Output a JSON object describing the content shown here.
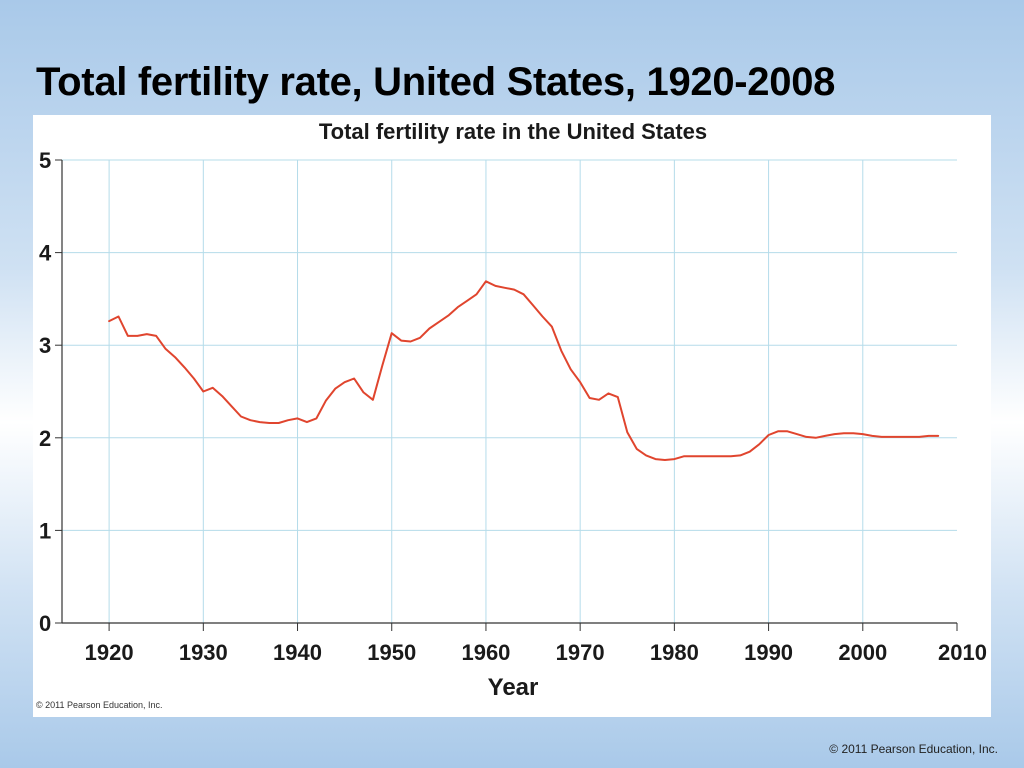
{
  "slide": {
    "title": "Total fertility rate, United States, 1920-2008",
    "footer": "© 2011 Pearson Education, Inc."
  },
  "figure": {
    "credit": "© 2011 Pearson Education, Inc."
  },
  "colors": {
    "line": "#e0452e",
    "grid": "#b5dcea",
    "axis": "#333333"
  },
  "chart_data": {
    "type": "line",
    "title": "Total fertility rate in the United States",
    "xlabel": "Year",
    "ylabel": "",
    "xlim": [
      1915,
      2010
    ],
    "ylim": [
      0,
      5
    ],
    "x_ticks": [
      1920,
      1930,
      1940,
      1950,
      1960,
      1970,
      1980,
      1990,
      2000,
      2010
    ],
    "y_ticks": [
      0,
      1,
      2,
      3,
      4,
      5
    ],
    "grid": true,
    "series": [
      {
        "x": [
          1920,
          1921,
          1922,
          1923,
          1924,
          1925,
          1926,
          1927,
          1928,
          1929,
          1930,
          1931,
          1932,
          1933,
          1934,
          1935,
          1936,
          1937,
          1938,
          1939,
          1940,
          1941,
          1942,
          1943,
          1944,
          1945,
          1946,
          1947,
          1948,
          1949,
          1950,
          1951,
          1952,
          1953,
          1954,
          1955,
          1956,
          1957,
          1958,
          1959,
          1960,
          1961,
          1962,
          1963,
          1964,
          1965,
          1966,
          1967,
          1968,
          1969,
          1970,
          1971,
          1972,
          1973,
          1974,
          1975,
          1976,
          1977,
          1978,
          1979,
          1980,
          1981,
          1982,
          1983,
          1984,
          1985,
          1986,
          1987,
          1988,
          1989,
          1990,
          1991,
          1992,
          1993,
          1994,
          1995,
          1996,
          1997,
          1998,
          1999,
          2000,
          2001,
          2002,
          2003,
          2004,
          2005,
          2006,
          2007,
          2008
        ],
        "y": [
          3.26,
          3.31,
          3.1,
          3.1,
          3.12,
          3.1,
          2.96,
          2.87,
          2.76,
          2.64,
          2.5,
          2.54,
          2.45,
          2.34,
          2.23,
          2.19,
          2.17,
          2.16,
          2.16,
          2.19,
          2.21,
          2.17,
          2.21,
          2.4,
          2.53,
          2.6,
          2.64,
          2.49,
          2.41,
          2.78,
          3.13,
          3.05,
          3.04,
          3.08,
          3.18,
          3.25,
          3.32,
          3.41,
          3.48,
          3.55,
          3.69,
          3.64,
          3.62,
          3.6,
          3.55,
          3.43,
          3.31,
          3.2,
          2.94,
          2.74,
          2.6,
          2.43,
          2.41,
          2.48,
          2.44,
          2.06,
          1.88,
          1.81,
          1.77,
          1.76,
          1.77,
          1.8,
          1.8,
          1.8,
          1.8,
          1.8,
          1.8,
          1.81,
          1.85,
          1.93,
          2.03,
          2.07,
          2.07,
          2.04,
          2.01,
          2.0,
          2.02,
          2.04,
          2.05,
          2.05,
          2.04,
          2.02,
          2.01,
          2.01,
          2.01,
          2.01,
          2.01,
          2.02,
          2.02
        ]
      }
    ]
  }
}
